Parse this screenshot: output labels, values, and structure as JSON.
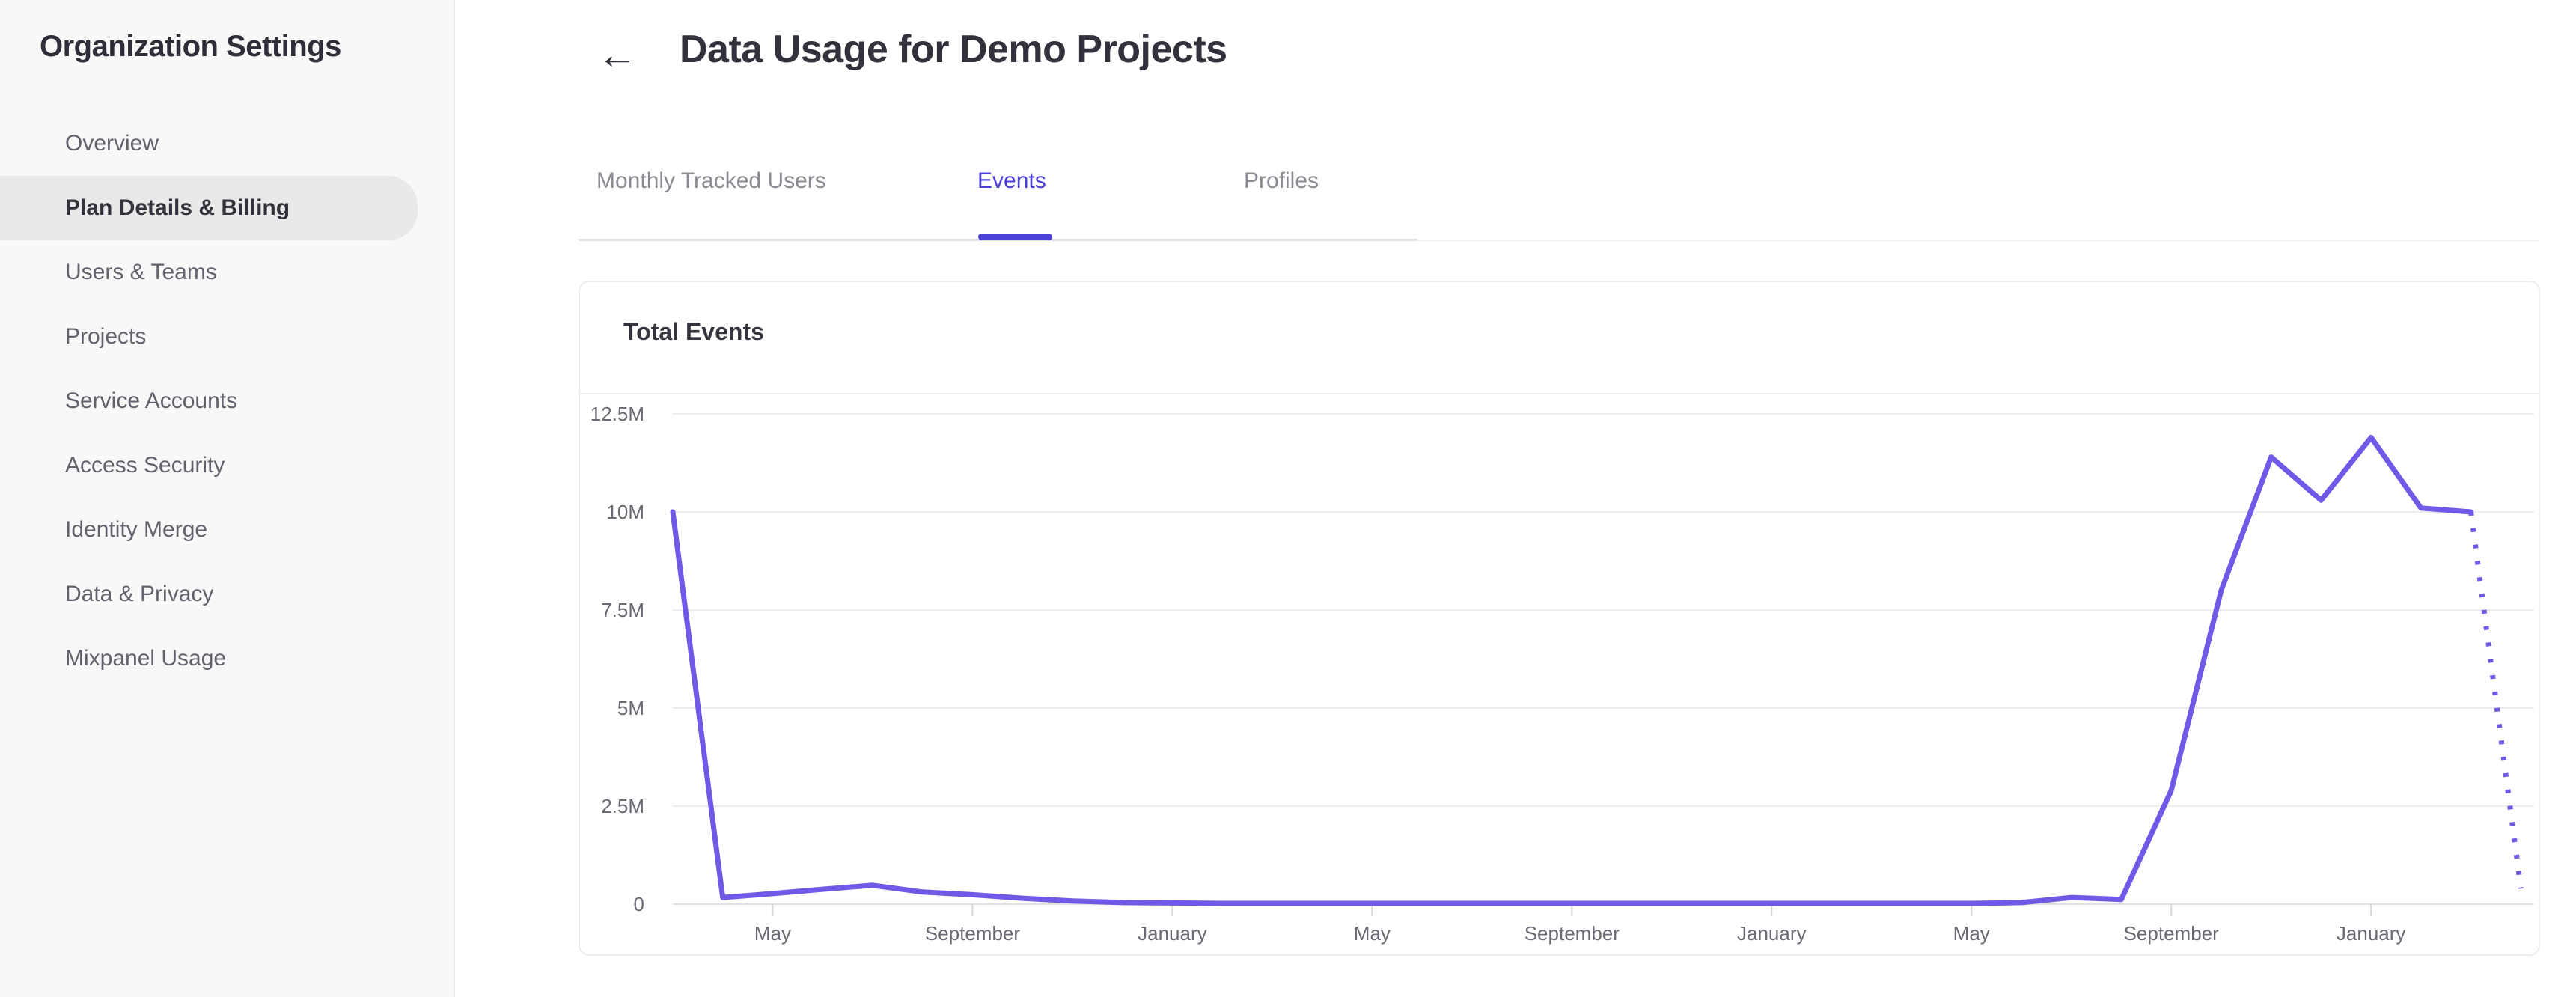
{
  "sidebar": {
    "title": "Organization Settings",
    "items": [
      {
        "label": "Overview",
        "selected": false
      },
      {
        "label": "Plan Details & Billing",
        "selected": true
      },
      {
        "label": "Users & Teams",
        "selected": false
      },
      {
        "label": "Projects",
        "selected": false
      },
      {
        "label": "Service Accounts",
        "selected": false
      },
      {
        "label": "Access Security",
        "selected": false
      },
      {
        "label": "Identity Merge",
        "selected": false
      },
      {
        "label": "Data & Privacy",
        "selected": false
      },
      {
        "label": "Mixpanel Usage",
        "selected": false
      }
    ]
  },
  "header": {
    "back_icon": "←",
    "title": "Data Usage for Demo Projects"
  },
  "tabs": {
    "items": [
      {
        "label": "Monthly Tracked Users",
        "active": false
      },
      {
        "label": "Events",
        "active": true
      },
      {
        "label": "Profiles",
        "active": false
      }
    ],
    "active_color": "#4b40d8"
  },
  "card": {
    "title": "Total Events"
  },
  "colors": {
    "line": "#6e5ae6",
    "grid": "#ececef",
    "baseline": "#e0e0e4",
    "tick": "#d8d8dc",
    "axis_text": "#6b6a74",
    "accent": "#4b40d8"
  },
  "chart_data": {
    "type": "line",
    "title": "Total Events",
    "xlabel": "",
    "ylabel": "",
    "grid": true,
    "legend": false,
    "ylim": [
      0,
      12500000
    ],
    "y_ticks": [
      "12.5M",
      "10M",
      "7.5M",
      "5M",
      "2.5M",
      "0"
    ],
    "y_tick_values_millions": [
      12.5,
      10,
      7.5,
      5,
      2.5,
      0
    ],
    "x_tick_labels": [
      "May",
      "September",
      "January",
      "May",
      "September",
      "January",
      "May",
      "September",
      "January"
    ],
    "x_tick_month_indices": [
      2,
      6,
      10,
      14,
      18,
      22,
      26,
      30,
      34
    ],
    "months_span": 38,
    "series": [
      {
        "name": "Total Events",
        "color": "#6e5ae6",
        "values_millions": [
          10,
          0.17,
          0.27,
          0.38,
          0.48,
          0.31,
          0.24,
          0.15,
          0.08,
          0.04,
          0.03,
          0.02,
          0.02,
          0.02,
          0.02,
          0.02,
          0.02,
          0.02,
          0.02,
          0.02,
          0.02,
          0.02,
          0.02,
          0.02,
          0.02,
          0.02,
          0.02,
          0.04,
          0.17,
          0.12,
          2.9,
          8.0,
          11.4,
          10.3,
          11.9,
          10.1,
          10.0
        ],
        "projected_values_millions": [
          10.0,
          0.4
        ],
        "projected_style": "dotted"
      }
    ]
  }
}
